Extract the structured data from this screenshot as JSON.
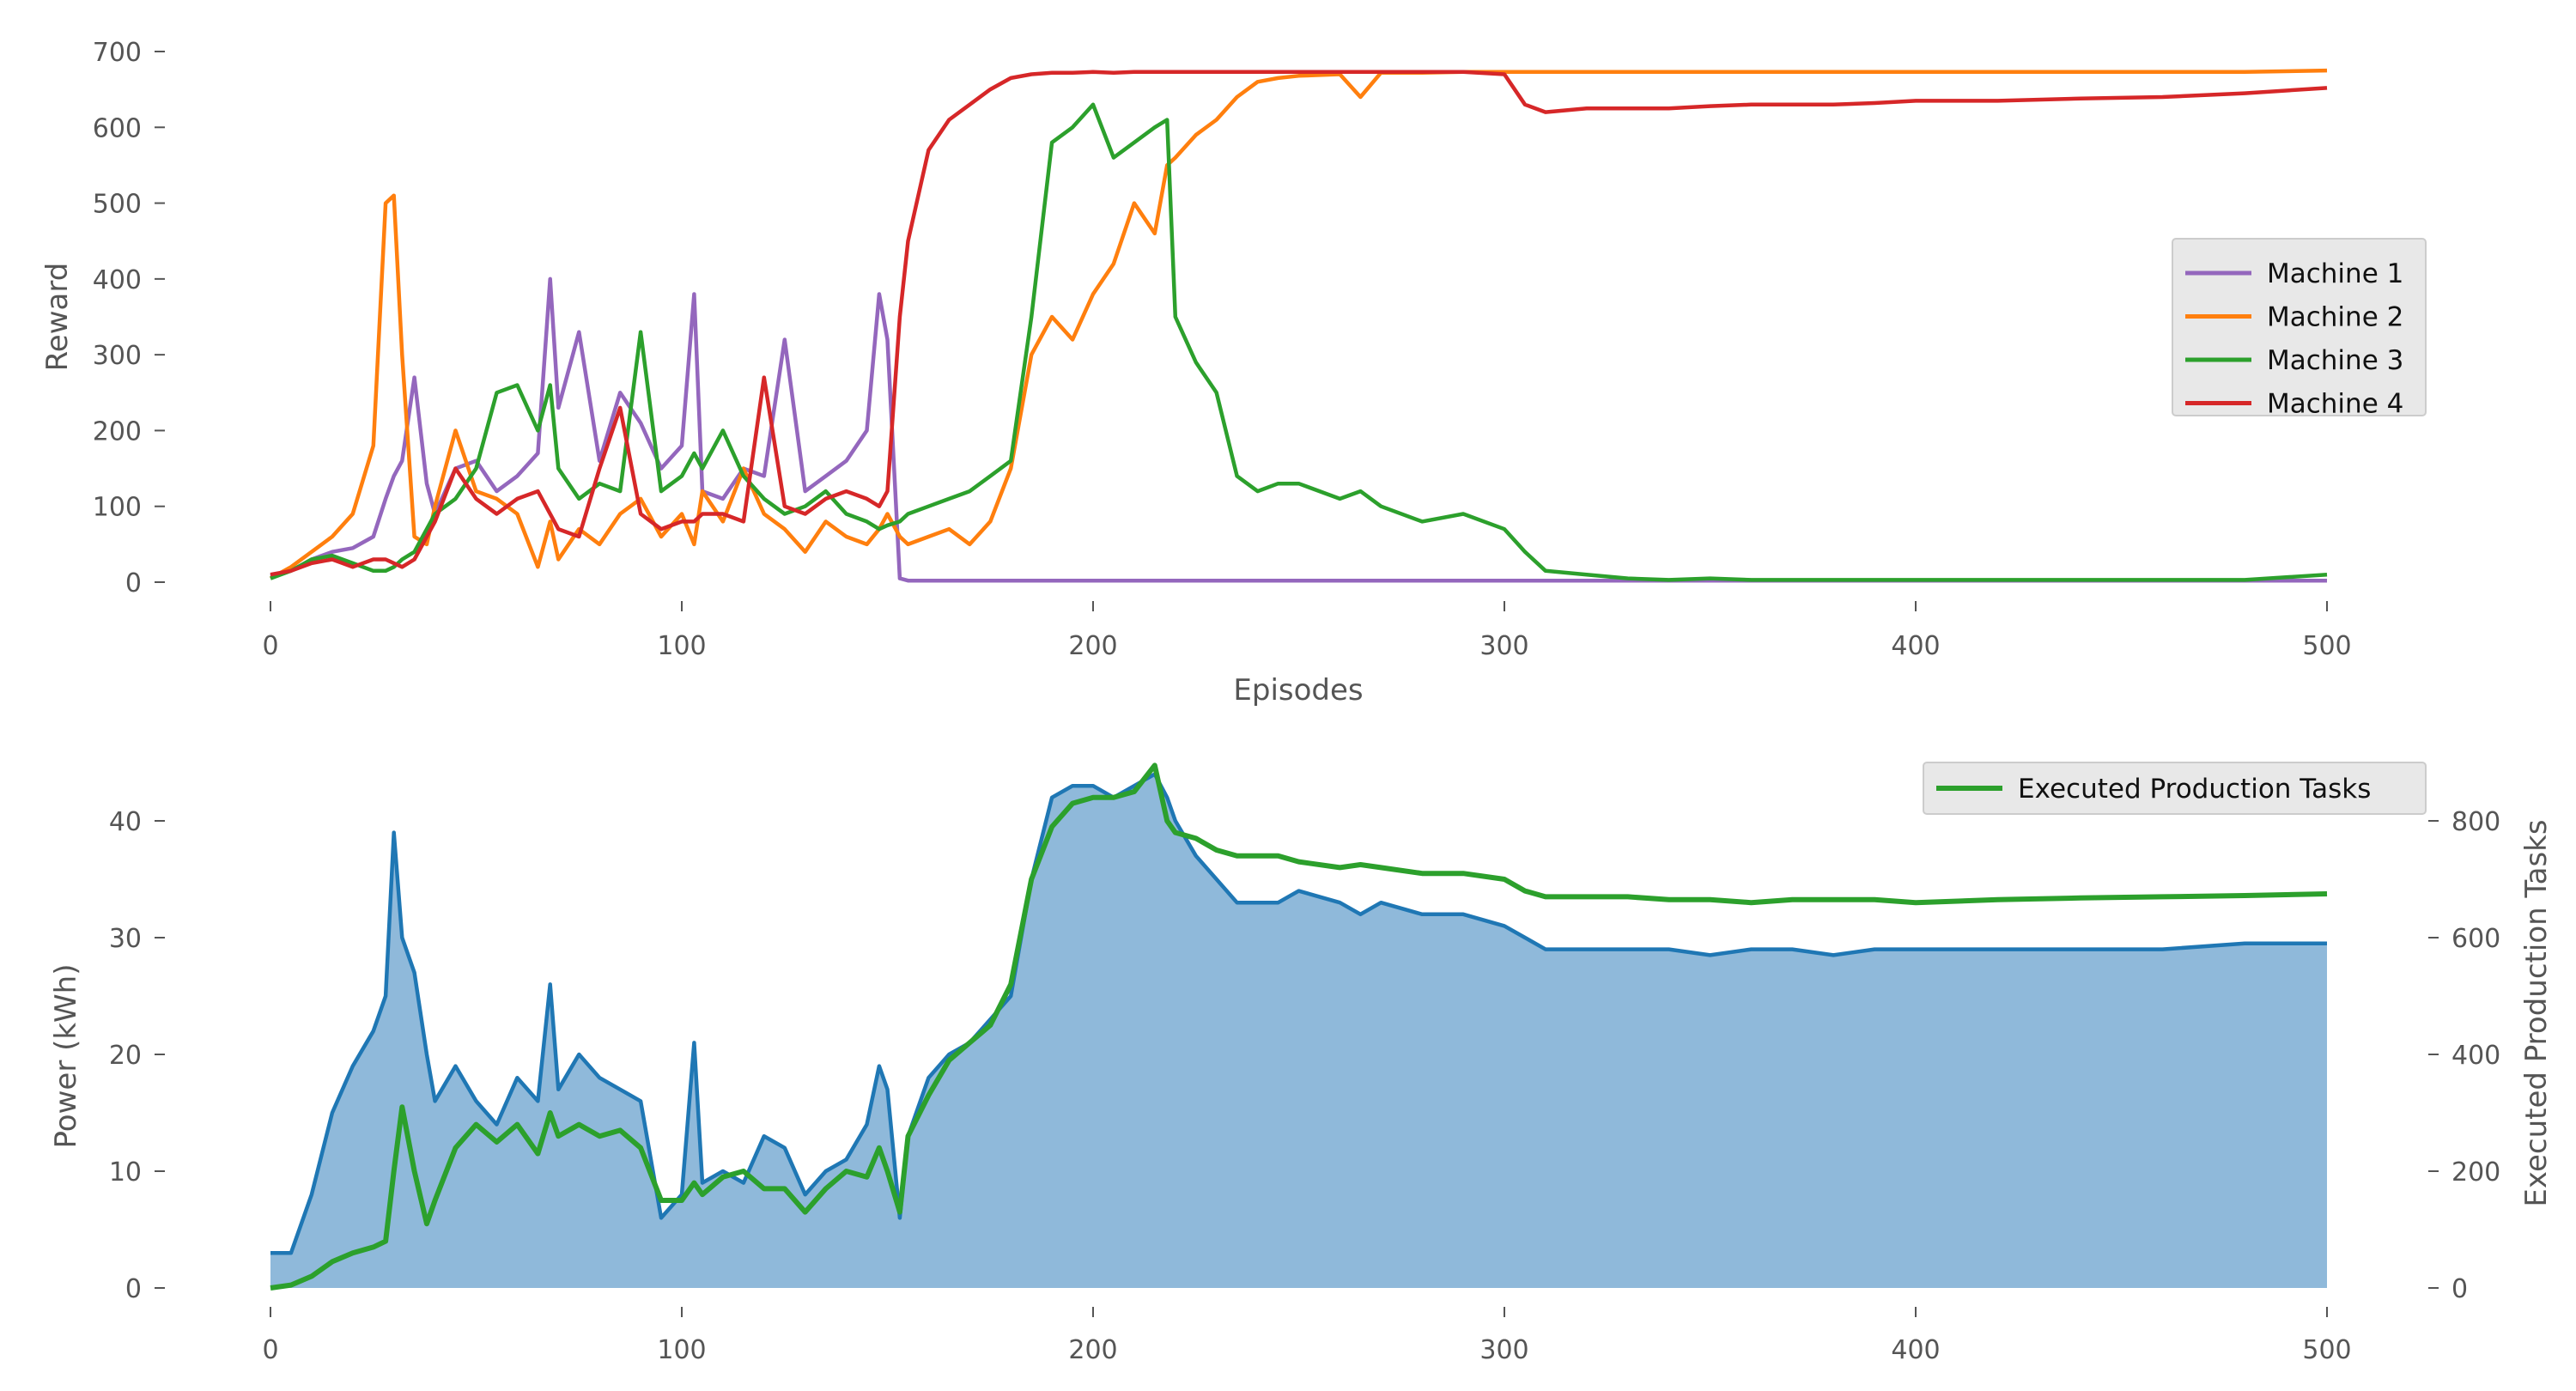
{
  "chart_data": [
    {
      "type": "line",
      "title": "",
      "xlabel": "Episodes",
      "ylabel": "Reward",
      "xlim": [
        0,
        500
      ],
      "ylim": [
        0,
        700
      ],
      "xticks": [
        "0",
        "100",
        "200",
        "300",
        "400",
        "500"
      ],
      "yticks": [
        "0",
        "100",
        "200",
        "300",
        "400",
        "500",
        "600",
        "700"
      ],
      "grid": false,
      "legend_position": "center-right",
      "x": [
        0,
        5,
        10,
        15,
        20,
        25,
        28,
        30,
        32,
        35,
        38,
        40,
        45,
        50,
        55,
        60,
        65,
        68,
        70,
        75,
        80,
        85,
        90,
        95,
        100,
        103,
        105,
        110,
        115,
        120,
        125,
        130,
        135,
        140,
        145,
        148,
        150,
        153,
        155,
        160,
        165,
        170,
        175,
        180,
        185,
        190,
        195,
        200,
        205,
        210,
        215,
        218,
        220,
        225,
        230,
        235,
        240,
        245,
        250,
        260,
        265,
        270,
        280,
        290,
        300,
        305,
        310,
        320,
        330,
        340,
        350,
        360,
        370,
        380,
        390,
        400,
        420,
        440,
        460,
        480,
        500
      ],
      "series": [
        {
          "name": "Machine 1",
          "color": "#9467bd",
          "values": [
            8,
            15,
            30,
            40,
            45,
            60,
            110,
            140,
            160,
            270,
            130,
            90,
            150,
            160,
            120,
            140,
            170,
            400,
            230,
            330,
            160,
            250,
            210,
            150,
            180,
            380,
            120,
            110,
            150,
            140,
            320,
            120,
            140,
            160,
            200,
            380,
            320,
            5,
            2,
            2,
            2,
            2,
            2,
            2,
            2,
            2,
            2,
            2,
            2,
            2,
            2,
            2,
            2,
            2,
            2,
            2,
            2,
            2,
            2,
            2,
            2,
            2,
            2,
            2,
            2,
            2,
            2,
            2,
            2,
            2,
            2,
            2,
            2,
            2,
            2,
            2,
            2,
            2,
            2,
            2,
            2
          ]
        },
        {
          "name": "Machine 2",
          "color": "#ff7f0e",
          "values": [
            5,
            20,
            40,
            60,
            90,
            180,
            500,
            510,
            300,
            60,
            50,
            100,
            200,
            120,
            110,
            90,
            20,
            80,
            30,
            70,
            50,
            90,
            110,
            60,
            90,
            50,
            120,
            80,
            150,
            90,
            70,
            40,
            80,
            60,
            50,
            70,
            90,
            60,
            50,
            60,
            70,
            50,
            80,
            150,
            300,
            350,
            320,
            380,
            420,
            500,
            460,
            550,
            560,
            590,
            610,
            640,
            660,
            665,
            668,
            670,
            640,
            672,
            672,
            673,
            673,
            673,
            673,
            673,
            673,
            673,
            673,
            673,
            673,
            673,
            673,
            673,
            673,
            673,
            673,
            673,
            675
          ]
        },
        {
          "name": "Machine 3",
          "color": "#2ca02c",
          "values": [
            5,
            15,
            30,
            35,
            25,
            15,
            15,
            20,
            30,
            40,
            70,
            90,
            110,
            150,
            250,
            260,
            200,
            260,
            150,
            110,
            130,
            120,
            330,
            120,
            140,
            170,
            150,
            200,
            140,
            110,
            90,
            100,
            120,
            90,
            80,
            70,
            75,
            80,
            90,
            100,
            110,
            120,
            140,
            160,
            350,
            580,
            600,
            630,
            560,
            580,
            600,
            610,
            350,
            290,
            250,
            140,
            120,
            130,
            130,
            110,
            120,
            100,
            80,
            90,
            70,
            40,
            15,
            10,
            5,
            3,
            5,
            3,
            3,
            3,
            3,
            3,
            3,
            3,
            3,
            3,
            10
          ]
        },
        {
          "name": "Machine 4",
          "color": "#d62728",
          "values": [
            10,
            15,
            25,
            30,
            20,
            30,
            30,
            25,
            20,
            30,
            60,
            80,
            150,
            110,
            90,
            110,
            120,
            90,
            70,
            60,
            150,
            230,
            90,
            70,
            80,
            80,
            90,
            90,
            80,
            270,
            100,
            90,
            110,
            120,
            110,
            100,
            120,
            350,
            450,
            570,
            610,
            630,
            650,
            665,
            670,
            672,
            672,
            673,
            672,
            673,
            673,
            673,
            673,
            673,
            673,
            673,
            673,
            673,
            673,
            673,
            673,
            673,
            673,
            673,
            670,
            630,
            620,
            625,
            625,
            625,
            628,
            630,
            630,
            630,
            632,
            635,
            635,
            638,
            640,
            645,
            652
          ]
        }
      ]
    },
    {
      "type": "area",
      "title": "",
      "xlabel": "",
      "ylabel": "Power (kWh)",
      "ylabel_right": "Executed Production Tasks",
      "xlim": [
        0,
        500
      ],
      "ylim": [
        0,
        45
      ],
      "ylim_right": [
        0,
        900
      ],
      "xticks": [
        "0",
        "100",
        "200",
        "300",
        "400",
        "500"
      ],
      "yticks": [
        "0",
        "10",
        "20",
        "30",
        "40"
      ],
      "yticks_right": [
        "0",
        "200",
        "400",
        "600",
        "800"
      ],
      "grid": false,
      "legend_position": "top-right",
      "x": [
        0,
        5,
        10,
        15,
        20,
        25,
        28,
        30,
        32,
        35,
        38,
        40,
        45,
        50,
        55,
        60,
        65,
        68,
        70,
        75,
        80,
        85,
        90,
        95,
        100,
        103,
        105,
        110,
        115,
        120,
        125,
        130,
        135,
        140,
        145,
        148,
        150,
        153,
        155,
        160,
        165,
        170,
        175,
        180,
        185,
        190,
        195,
        200,
        205,
        210,
        215,
        218,
        220,
        225,
        230,
        235,
        240,
        245,
        250,
        260,
        265,
        270,
        280,
        290,
        300,
        305,
        310,
        320,
        330,
        340,
        350,
        360,
        370,
        380,
        390,
        400,
        420,
        440,
        460,
        480,
        500
      ],
      "series": [
        {
          "name": "",
          "axis": "left",
          "color": "#1f77b4",
          "fill": "#8fb9da",
          "values": [
            3,
            3,
            8,
            15,
            19,
            22,
            25,
            39,
            30,
            27,
            20,
            16,
            19,
            16,
            14,
            18,
            16,
            26,
            17,
            20,
            18,
            17,
            16,
            6,
            8,
            21,
            9,
            10,
            9,
            13,
            12,
            8,
            10,
            11,
            14,
            19,
            17,
            6,
            13,
            18,
            20,
            21,
            23,
            25,
            35,
            42,
            43,
            43,
            42,
            43,
            44,
            42,
            40,
            37,
            35,
            33,
            33,
            33,
            34,
            33,
            32,
            33,
            32,
            32,
            31,
            30,
            29,
            29,
            29,
            29,
            28.5,
            29,
            29,
            28.5,
            29,
            29,
            29,
            29,
            29,
            29.5,
            29.5
          ]
        },
        {
          "name": "Executed Production Tasks",
          "axis": "right",
          "color": "#2ca02c",
          "values": [
            0,
            5,
            20,
            45,
            60,
            70,
            80,
            200,
            310,
            200,
            110,
            150,
            240,
            280,
            250,
            280,
            230,
            300,
            260,
            280,
            260,
            270,
            240,
            150,
            150,
            180,
            160,
            190,
            200,
            170,
            170,
            130,
            170,
            200,
            190,
            240,
            200,
            130,
            260,
            330,
            390,
            420,
            450,
            520,
            700,
            790,
            830,
            840,
            840,
            850,
            895,
            800,
            780,
            770,
            750,
            740,
            740,
            740,
            730,
            720,
            725,
            720,
            710,
            710,
            700,
            680,
            670,
            670,
            670,
            665,
            665,
            660,
            665,
            665,
            665,
            660,
            665,
            668,
            670,
            672,
            675
          ]
        }
      ]
    }
  ]
}
